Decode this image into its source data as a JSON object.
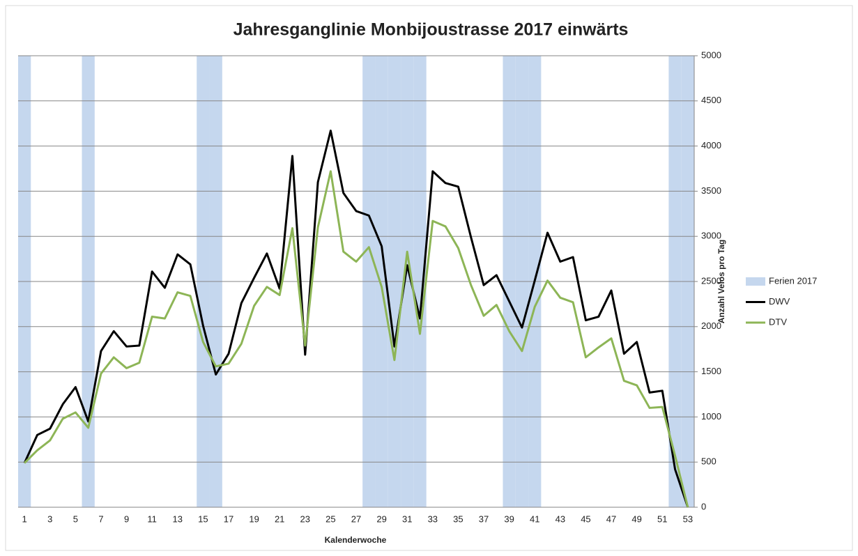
{
  "chart_data": {
    "type": "line",
    "title": "Jahresganglinie Monbijoustrasse 2017 einwärts",
    "x_label": "Kalenderwoche",
    "y_label": "Anzahl Velos pro Tag",
    "y_axis_side": "right",
    "legend_position": "right",
    "grid": true,
    "categories": [
      1,
      null,
      3,
      null,
      5,
      null,
      7,
      null,
      9,
      null,
      11,
      null,
      13,
      null,
      15,
      null,
      17,
      null,
      19,
      null,
      21,
      null,
      23,
      null,
      25,
      null,
      27,
      null,
      29,
      null,
      31,
      null,
      33,
      null,
      35,
      null,
      37,
      null,
      39,
      null,
      41,
      null,
      43,
      null,
      45,
      null,
      47,
      null,
      49,
      null,
      51,
      null,
      53
    ],
    "ylim": [
      0,
      5000
    ],
    "yticks": [
      0,
      500,
      1000,
      1500,
      2000,
      2500,
      3000,
      3500,
      4000,
      4500,
      5000
    ],
    "series": [
      {
        "name": "Ferien 2017",
        "type": "bar",
        "color": "#c5d7ee",
        "values": [
          5000,
          null,
          null,
          null,
          null,
          5000,
          null,
          null,
          null,
          null,
          null,
          null,
          null,
          null,
          5000,
          5000,
          null,
          null,
          null,
          null,
          null,
          null,
          null,
          null,
          null,
          null,
          null,
          5000,
          5000,
          5000,
          5000,
          5000,
          null,
          null,
          null,
          null,
          null,
          null,
          5000,
          5000,
          5000,
          null,
          null,
          null,
          null,
          null,
          null,
          null,
          null,
          null,
          null,
          5000,
          5000
        ]
      },
      {
        "name": "DWV",
        "type": "line",
        "color": "#000000",
        "values": [
          490,
          800,
          870,
          1140,
          1330,
          950,
          1730,
          1950,
          1780,
          1790,
          2610,
          2430,
          2800,
          2690,
          2010,
          1470,
          1700,
          2260,
          2540,
          2810,
          2420,
          3890,
          1690,
          3600,
          4170,
          3480,
          3280,
          3230,
          2890,
          1780,
          2680,
          2090,
          3720,
          3590,
          3550,
          2990,
          2460,
          2570,
          2280,
          1990,
          2510,
          3040,
          2720,
          2770,
          2070,
          2110,
          2400,
          1700,
          1830,
          1270,
          1290,
          420,
          0
        ]
      },
      {
        "name": "DTV",
        "type": "line",
        "color": "#8db556",
        "values": [
          490,
          630,
          740,
          980,
          1050,
          880,
          1480,
          1660,
          1540,
          1600,
          2110,
          2090,
          2380,
          2340,
          1830,
          1560,
          1590,
          1810,
          2230,
          2440,
          2350,
          3090,
          1790,
          3100,
          3720,
          2830,
          2720,
          2880,
          2440,
          1630,
          2830,
          1920,
          3170,
          3110,
          2870,
          2460,
          2120,
          2240,
          1950,
          1730,
          2220,
          2510,
          2320,
          2270,
          1660,
          1770,
          1870,
          1400,
          1350,
          1100,
          1110,
          570,
          0
        ]
      }
    ]
  }
}
